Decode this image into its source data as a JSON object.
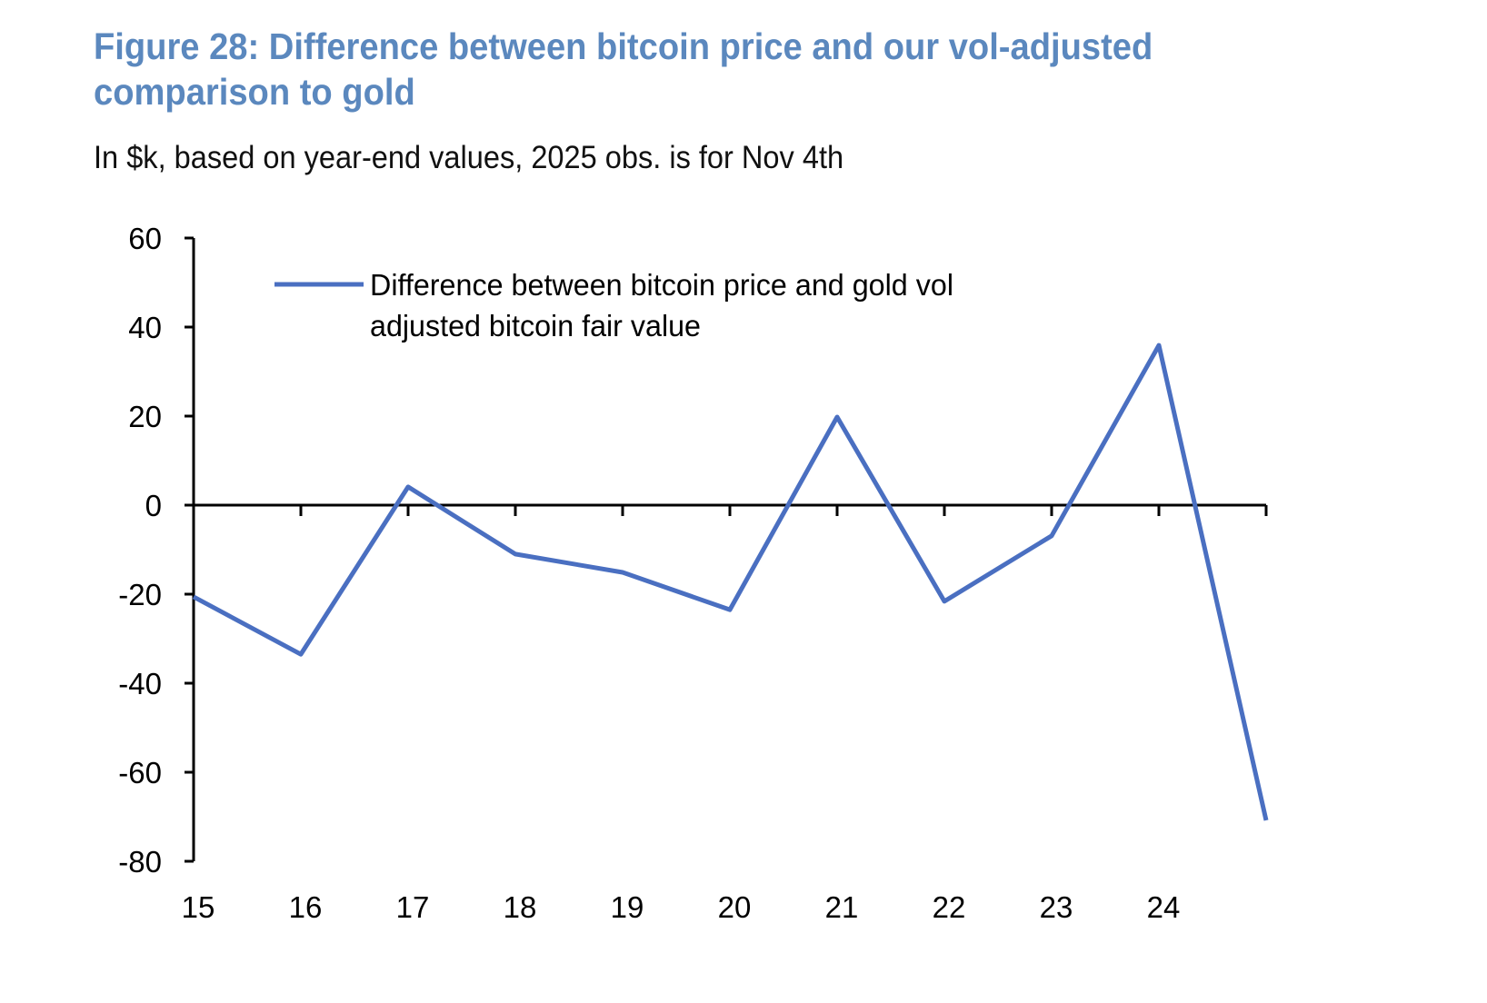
{
  "chart_data": {
    "type": "line",
    "title": "Figure 28: Difference between bitcoin price and our vol-adjusted comparison to gold",
    "subtitle": "In $k, based on year-end values, 2025 obs. is for Nov 4th",
    "xlabel": "",
    "ylabel": "",
    "x": [
      15,
      16,
      17,
      18,
      19,
      20,
      21,
      22,
      23,
      24,
      25
    ],
    "x_tick_labels": [
      "15",
      "16",
      "17",
      "18",
      "19",
      "20",
      "21",
      "22",
      "23",
      "24"
    ],
    "y_tick_labels": [
      "60",
      "40",
      "20",
      "0",
      "-20",
      "-40",
      "-60",
      "-80"
    ],
    "ylim": [
      -80,
      60
    ],
    "xlim": [
      15,
      25
    ],
    "grid": false,
    "legend_placement": "top-left",
    "series": [
      {
        "name": "Difference between bitcoin price and gold vol adjusted bitcoin fair value",
        "legend_lines": [
          "Difference between bitcoin price and gold vol",
          "adjusted bitcoin fair value"
        ],
        "color": "#4a6fc1",
        "values": [
          -20.6,
          -33.5,
          4.1,
          -11.0,
          -15.1,
          -23.5,
          19.8,
          -21.6,
          -6.9,
          35.9,
          -70.8
        ]
      }
    ]
  }
}
